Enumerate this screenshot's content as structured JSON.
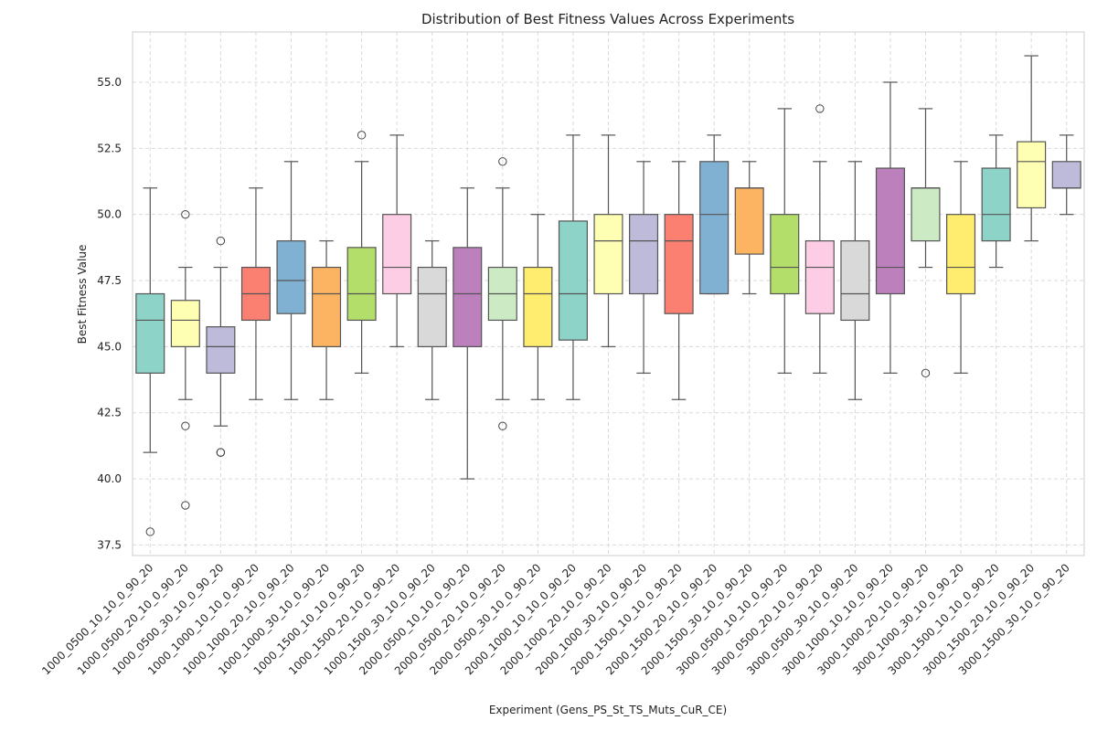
{
  "chart_data": {
    "type": "box",
    "title": "Distribution of Best Fitness Values Across Experiments",
    "xlabel": "Experiment (Gens_PS_St_TS_Muts_CuR_CE)",
    "ylabel": "Best Fitness Value",
    "ylim": [
      37.1,
      56.9
    ],
    "yticks": [
      "37.5",
      "40.0",
      "42.5",
      "45.0",
      "47.5",
      "50.0",
      "52.5",
      "55.0"
    ],
    "grid": true,
    "categories": [
      "1000_0500_10_10_0_90_20",
      "1000_0500_20_10_0_90_20",
      "1000_0500_30_10_0_90_20",
      "1000_1000_10_10_0_90_20",
      "1000_1000_20_10_0_90_20",
      "1000_1000_30_10_0_90_20",
      "1000_1500_10_10_0_90_20",
      "1000_1500_20_10_0_90_20",
      "1000_1500_30_10_0_90_20",
      "2000_0500_10_10_0_90_20",
      "2000_0500_20_10_0_90_20",
      "2000_0500_30_10_0_90_20",
      "2000_1000_10_10_0_90_20",
      "2000_1000_20_10_0_90_20",
      "2000_1000_30_10_0_90_20",
      "2000_1500_10_10_0_90_20",
      "2000_1500_20_10_0_90_20",
      "2000_1500_30_10_0_90_20",
      "3000_0500_10_10_0_90_20",
      "3000_0500_20_10_0_90_20",
      "3000_0500_30_10_0_90_20",
      "3000_1000_10_10_0_90_20",
      "3000_1000_20_10_0_90_20",
      "3000_1000_30_10_0_90_20",
      "3000_1500_10_10_0_90_20",
      "3000_1500_20_10_0_90_20",
      "3000_1500_30_10_0_90_20"
    ],
    "colors": [
      "#8dd3c7",
      "#ffffb3",
      "#bebada",
      "#fb8072",
      "#80b1d3",
      "#fdb462",
      "#b3de69",
      "#fccde5",
      "#d9d9d9",
      "#bc80bd",
      "#ccebc5",
      "#ffed6f"
    ],
    "boxes": [
      {
        "whislo": 41,
        "q1": 44,
        "med": 46,
        "q3": 47,
        "whishi": 51,
        "fliers": [
          38
        ]
      },
      {
        "whislo": 43,
        "q1": 45,
        "med": 46,
        "q3": 46.75,
        "whishi": 48,
        "fliers": [
          50,
          42,
          39
        ]
      },
      {
        "whislo": 42,
        "q1": 44,
        "med": 45,
        "q3": 45.75,
        "whishi": 48,
        "fliers": [
          49,
          41,
          41
        ]
      },
      {
        "whislo": 43,
        "q1": 46,
        "med": 47,
        "q3": 48,
        "whishi": 51,
        "fliers": []
      },
      {
        "whislo": 43,
        "q1": 46.25,
        "med": 47.5,
        "q3": 49,
        "whishi": 52,
        "fliers": []
      },
      {
        "whislo": 43,
        "q1": 45,
        "med": 47,
        "q3": 48,
        "whishi": 49,
        "fliers": []
      },
      {
        "whislo": 44,
        "q1": 46,
        "med": 47,
        "q3": 48.75,
        "whishi": 52,
        "fliers": [
          53
        ]
      },
      {
        "whislo": 45,
        "q1": 47,
        "med": 48,
        "q3": 50,
        "whishi": 53,
        "fliers": []
      },
      {
        "whislo": 43,
        "q1": 45,
        "med": 47,
        "q3": 48,
        "whishi": 49,
        "fliers": []
      },
      {
        "whislo": 40,
        "q1": 45,
        "med": 47,
        "q3": 48.75,
        "whishi": 51,
        "fliers": []
      },
      {
        "whislo": 43,
        "q1": 46,
        "med": 47,
        "q3": 48,
        "whishi": 51,
        "fliers": [
          52,
          42
        ]
      },
      {
        "whislo": 43,
        "q1": 45,
        "med": 47,
        "q3": 48,
        "whishi": 50,
        "fliers": []
      },
      {
        "whislo": 43,
        "q1": 45.25,
        "med": 47,
        "q3": 49.75,
        "whishi": 53,
        "fliers": []
      },
      {
        "whislo": 45,
        "q1": 47,
        "med": 49,
        "q3": 50,
        "whishi": 53,
        "fliers": []
      },
      {
        "whislo": 44,
        "q1": 47,
        "med": 49,
        "q3": 50,
        "whishi": 52,
        "fliers": []
      },
      {
        "whislo": 43,
        "q1": 46.25,
        "med": 49,
        "q3": 50,
        "whishi": 52,
        "fliers": []
      },
      {
        "whislo": 47,
        "q1": 47,
        "med": 50,
        "q3": 52,
        "whishi": 53,
        "fliers": []
      },
      {
        "whislo": 47,
        "q1": 48.5,
        "med": 51,
        "q3": 51,
        "whishi": 52,
        "fliers": []
      },
      {
        "whislo": 44,
        "q1": 47,
        "med": 48,
        "q3": 50,
        "whishi": 54,
        "fliers": []
      },
      {
        "whislo": 44,
        "q1": 46.25,
        "med": 48,
        "q3": 49,
        "whishi": 52,
        "fliers": [
          54
        ]
      },
      {
        "whislo": 43,
        "q1": 46,
        "med": 47,
        "q3": 49,
        "whishi": 52,
        "fliers": []
      },
      {
        "whislo": 44,
        "q1": 47,
        "med": 48,
        "q3": 51.75,
        "whishi": 55,
        "fliers": []
      },
      {
        "whislo": 48,
        "q1": 49,
        "med": 51,
        "q3": 51,
        "whishi": 54,
        "fliers": [
          44
        ]
      },
      {
        "whislo": 44,
        "q1": 47,
        "med": 48,
        "q3": 50,
        "whishi": 52,
        "fliers": []
      },
      {
        "whislo": 48,
        "q1": 49,
        "med": 50,
        "q3": 51.75,
        "whishi": 53,
        "fliers": []
      },
      {
        "whislo": 49,
        "q1": 50.25,
        "med": 52,
        "q3": 52.75,
        "whishi": 56,
        "fliers": []
      },
      {
        "whislo": 50,
        "q1": 51,
        "med": 51,
        "q3": 52,
        "whishi": 53,
        "fliers": []
      }
    ]
  }
}
